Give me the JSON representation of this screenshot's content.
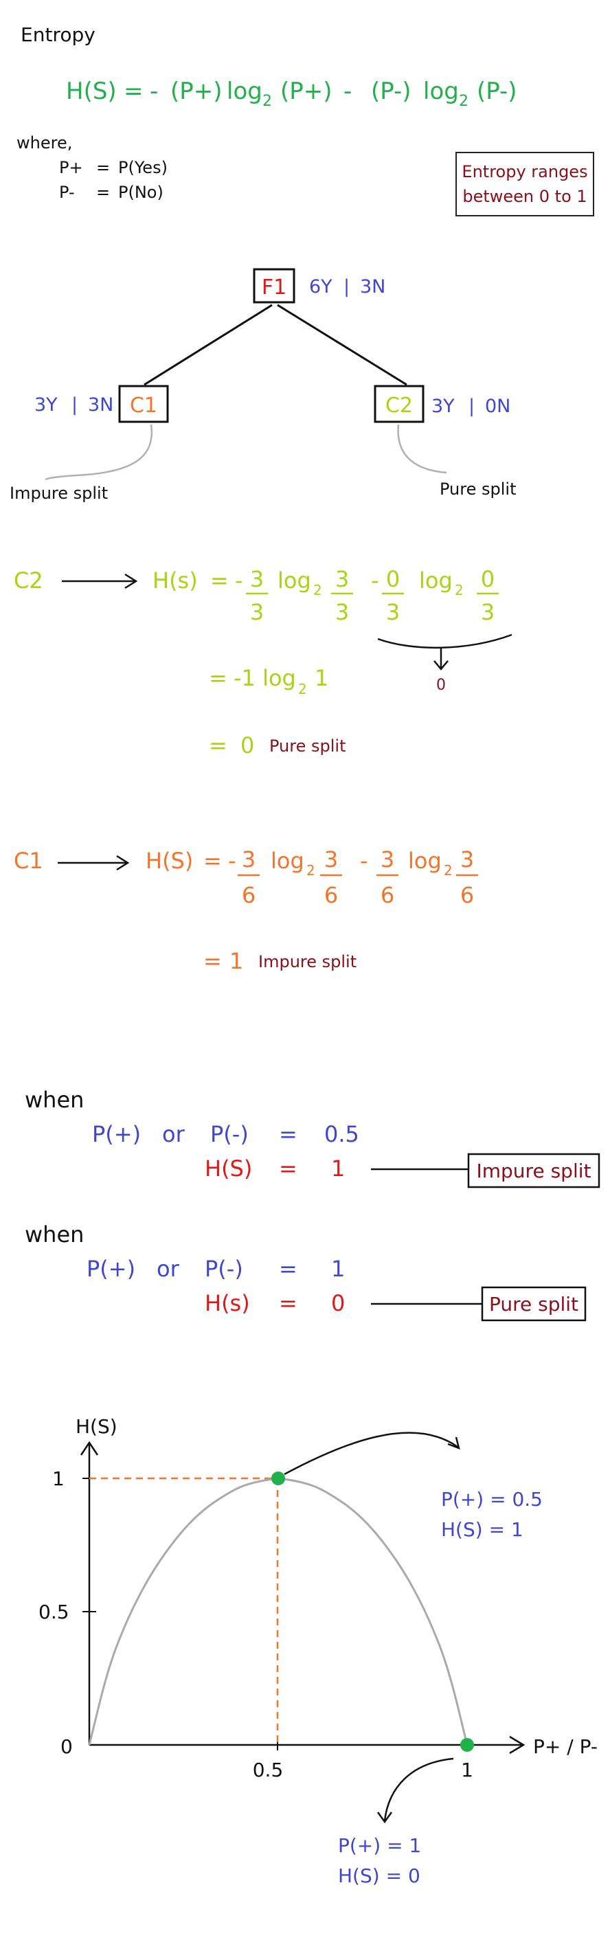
{
  "colors": {
    "green": "#22b04b",
    "lime": "#a8d414",
    "orange": "#f2752a",
    "blue": "#3f48cc",
    "red": "#e01818",
    "maroon": "#8b0f1a",
    "black": "#111111",
    "gray": "#aaaaaa",
    "point": "#1fb24a"
  },
  "header": {
    "title": "Entropy",
    "formula": {
      "lhs": "H(S)",
      "eq": "=",
      "minus": "-",
      "p_plus": "(P+)",
      "p_minus": "(P-)",
      "log": "log",
      "base": "2"
    },
    "where": "where,",
    "defs": [
      {
        "sym": "P+",
        "eq": "=",
        "val": "P(Yes)"
      },
      {
        "sym": "P-",
        "eq": "=",
        "val": "P(No)"
      }
    ],
    "note": [
      "Entropy ranges",
      "between 0 to 1"
    ]
  },
  "tree": {
    "root": {
      "label": "F1",
      "counts": {
        "y": "6Y",
        "sep": "|",
        "n": "3N"
      }
    },
    "left": {
      "label": "C1",
      "counts": {
        "y": "3Y",
        "sep": "|",
        "n": "3N"
      },
      "caption": "Impure split"
    },
    "right": {
      "label": "C2",
      "counts": {
        "y": "3Y",
        "sep": "|",
        "n": "0N"
      },
      "caption": "Pure split"
    }
  },
  "c2_calc": {
    "node": "C2",
    "hs": "H(s)",
    "eq": "=",
    "t1": {
      "sign": "-",
      "num": "3",
      "den": "3"
    },
    "t2": {
      "num": "3",
      "den": "3"
    },
    "t3": {
      "sign": "-",
      "num": "0",
      "den": "3"
    },
    "t4": {
      "num": "0",
      "den": "3"
    },
    "log": "log",
    "base": "2",
    "zero_note": "0",
    "line2": {
      "eq": "=",
      "pre": "-1 log",
      "base": "2",
      "post": "1"
    },
    "line3": {
      "eq": "=",
      "val": "0",
      "label": "Pure split"
    }
  },
  "c1_calc": {
    "node": "C1",
    "hs": "H(S)",
    "eq": "=",
    "t1": {
      "sign": "-",
      "num": "3",
      "den": "6"
    },
    "t2": {
      "num": "3",
      "den": "6"
    },
    "t3": {
      "sign": "-",
      "num": "3",
      "den": "6"
    },
    "t4": {
      "num": "3",
      "den": "6"
    },
    "log": "log",
    "base": "2",
    "result": {
      "eq": "=",
      "val": "1",
      "label": "Impure split"
    }
  },
  "cases": [
    {
      "when": "when",
      "p1": "P(+)",
      "or": "or",
      "p2": "P(-)",
      "eq": "=",
      "pval": "0.5",
      "hs": "H(S)",
      "eq2": "=",
      "hval": "1",
      "box": "Impure split"
    },
    {
      "when": "when",
      "p1": "P(+)",
      "or": "or",
      "p2": "P(-)",
      "eq": "=",
      "pval": "1",
      "hs": "H(s)",
      "eq2": "=",
      "hval": "0",
      "box": "Pure split"
    }
  ],
  "chart_data": {
    "type": "line",
    "ylabel": "H(S)",
    "xlabel": "P+ / P-",
    "origin_label": "0",
    "xlim": [
      0,
      1
    ],
    "ylim": [
      0,
      1
    ],
    "x_ticks": [
      "0.5",
      "1"
    ],
    "y_ticks": [
      "1",
      "0.5"
    ],
    "curve": [
      [
        0.0,
        0.0
      ],
      [
        0.05,
        0.29
      ],
      [
        0.1,
        0.47
      ],
      [
        0.15,
        0.61
      ],
      [
        0.2,
        0.72
      ],
      [
        0.25,
        0.81
      ],
      [
        0.3,
        0.88
      ],
      [
        0.35,
        0.93
      ],
      [
        0.4,
        0.97
      ],
      [
        0.45,
        0.99
      ],
      [
        0.5,
        1.0
      ],
      [
        0.55,
        0.99
      ],
      [
        0.6,
        0.97
      ],
      [
        0.65,
        0.93
      ],
      [
        0.7,
        0.88
      ],
      [
        0.75,
        0.81
      ],
      [
        0.8,
        0.72
      ],
      [
        0.85,
        0.61
      ],
      [
        0.9,
        0.47
      ],
      [
        0.95,
        0.29
      ],
      [
        1.0,
        0.0
      ]
    ],
    "highlight_points": [
      {
        "x": 0.5,
        "y": 1,
        "label1": "P(+)  = 0.5",
        "label2": "H(S)  = 1"
      },
      {
        "x": 1,
        "y": 0,
        "label1": "P(+)  = 1",
        "label2": "H(S)  = 0"
      }
    ]
  }
}
